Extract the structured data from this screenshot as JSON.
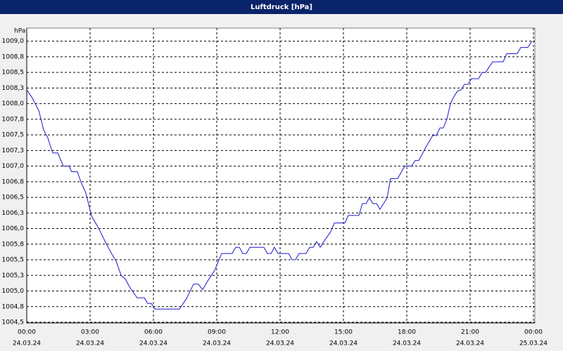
{
  "chart_data": {
    "type": "line",
    "title": "Luftdruck [hPa]",
    "y_label": "hPa",
    "x": [
      0,
      0.23,
      0.57,
      0.8,
      1.0,
      1.23,
      1.47,
      1.73,
      2.0,
      2.13,
      2.4,
      2.57,
      2.8,
      3.07,
      3.4,
      3.73,
      4.0,
      4.23,
      4.47,
      4.67,
      4.9,
      5.23,
      5.57,
      5.73,
      5.9,
      6.07,
      7.23,
      7.57,
      7.9,
      8.13,
      8.33,
      8.57,
      8.9,
      9.23,
      9.73,
      9.9,
      10.07,
      10.23,
      10.4,
      10.57,
      11.23,
      11.4,
      11.57,
      11.73,
      11.9,
      12.4,
      12.57,
      12.73,
      12.9,
      13.23,
      13.4,
      13.57,
      13.73,
      13.9,
      14.07,
      14.4,
      14.57,
      15.07,
      15.23,
      15.73,
      15.9,
      16.07,
      16.23,
      16.4,
      16.57,
      16.73,
      16.9,
      17.07,
      17.23,
      17.57,
      17.9,
      18.23,
      18.4,
      18.57,
      18.9,
      19.23,
      19.4,
      19.57,
      19.73,
      19.9,
      20.07,
      20.23,
      20.4,
      20.57,
      20.73,
      20.9,
      21.07,
      21.4,
      21.57,
      21.73,
      22.07,
      22.57,
      22.73,
      23.23,
      23.4,
      23.73,
      23.93
    ],
    "values": [
      1008.22,
      1008.11,
      1007.89,
      1007.58,
      1007.45,
      1007.21,
      1007.21,
      1007.0,
      1007.0,
      1006.91,
      1006.91,
      1006.74,
      1006.57,
      1006.2,
      1006.01,
      1005.78,
      1005.61,
      1005.48,
      1005.25,
      1005.19,
      1005.05,
      1004.89,
      1004.89,
      1004.8,
      1004.8,
      1004.71,
      1004.71,
      1004.88,
      1005.11,
      1005.11,
      1005.02,
      1005.16,
      1005.33,
      1005.6,
      1005.6,
      1005.7,
      1005.7,
      1005.6,
      1005.6,
      1005.7,
      1005.7,
      1005.6,
      1005.6,
      1005.7,
      1005.6,
      1005.6,
      1005.5,
      1005.5,
      1005.6,
      1005.6,
      1005.7,
      1005.7,
      1005.79,
      1005.7,
      1005.79,
      1005.95,
      1006.09,
      1006.09,
      1006.21,
      1006.21,
      1006.4,
      1006.4,
      1006.49,
      1006.4,
      1006.4,
      1006.31,
      1006.4,
      1006.49,
      1006.8,
      1006.8,
      1007.0,
      1007.0,
      1007.09,
      1007.09,
      1007.3,
      1007.49,
      1007.49,
      1007.61,
      1007.61,
      1007.75,
      1008.0,
      1008.11,
      1008.2,
      1008.22,
      1008.31,
      1008.31,
      1008.4,
      1008.4,
      1008.5,
      1008.5,
      1008.67,
      1008.67,
      1008.8,
      1008.8,
      1008.9,
      1008.9,
      1009.0
    ],
    "color": "#1a1acc",
    "xlim": [
      0,
      24
    ],
    "xticks": [
      {
        "value": 0,
        "label": "00:00",
        "date": "24.03.24"
      },
      {
        "value": 3,
        "label": "03:00",
        "date": "24.03.24"
      },
      {
        "value": 6,
        "label": "06:00",
        "date": "24.03.24"
      },
      {
        "value": 9,
        "label": "09:00",
        "date": "24.03.24"
      },
      {
        "value": 12,
        "label": "12:00",
        "date": "24.03.24"
      },
      {
        "value": 15,
        "label": "15:00",
        "date": "24.03.24"
      },
      {
        "value": 18,
        "label": "18:00",
        "date": "24.03.24"
      },
      {
        "value": 21,
        "label": "21:00",
        "date": "24.03.24"
      },
      {
        "value": 24,
        "label": "00:00",
        "date": "25.03.24"
      }
    ],
    "ylim": [
      1004.5,
      1009.21
    ],
    "yticks": [
      {
        "value": 1004.5,
        "label": "1004,5"
      },
      {
        "value": 1004.75,
        "label": "1004,8"
      },
      {
        "value": 1005,
        "label": "1005,0"
      },
      {
        "value": 1005.25,
        "label": "1005,3"
      },
      {
        "value": 1005.5,
        "label": "1005,5"
      },
      {
        "value": 1005.75,
        "label": "1005,8"
      },
      {
        "value": 1006,
        "label": "1006,0"
      },
      {
        "value": 1006.25,
        "label": "1006,3"
      },
      {
        "value": 1006.5,
        "label": "1006,5"
      },
      {
        "value": 1006.75,
        "label": "1006,8"
      },
      {
        "value": 1007,
        "label": "1007,0"
      },
      {
        "value": 1007.25,
        "label": "1007,3"
      },
      {
        "value": 1007.5,
        "label": "1007,5"
      },
      {
        "value": 1007.75,
        "label": "1007,8"
      },
      {
        "value": 1008,
        "label": "1008,0"
      },
      {
        "value": 1008.25,
        "label": "1008,3"
      },
      {
        "value": 1008.5,
        "label": "1008,5"
      },
      {
        "value": 1008.75,
        "label": "1008,8"
      },
      {
        "value": 1009,
        "label": "1009,0"
      }
    ],
    "grid": true
  }
}
